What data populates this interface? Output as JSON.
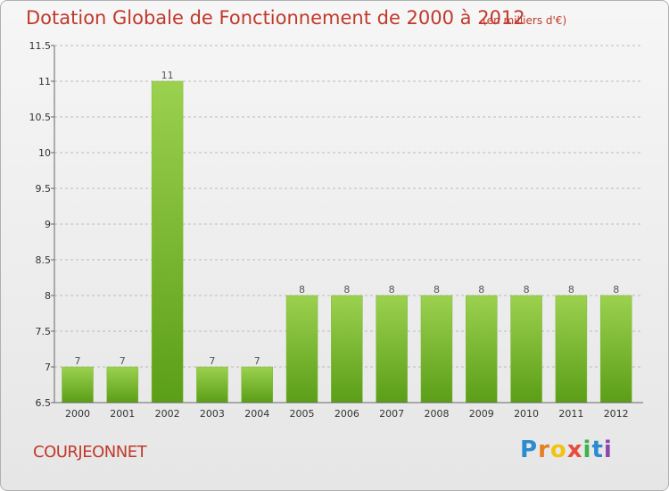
{
  "title": "Dotation Globale de Fonctionnement de 2000 à 2012",
  "subtitle": "(en milliers d'€)",
  "place": "COURJEONNET",
  "logo": {
    "P": "P",
    "r": "r",
    "o": "o",
    "x": "x",
    "i1": "i",
    "t": "t",
    "i2": "i"
  },
  "colors": {
    "title": "#c0392b",
    "bar_top": "#9bd14f",
    "bar_bottom": "#5b9e17",
    "bar_edge": "#7fb83a",
    "grid": "#bbbbbb",
    "axis": "#666666"
  },
  "chart_data": {
    "type": "bar",
    "title": "Dotation Globale de Fonctionnement de 2000 à 2012",
    "subtitle": "(en milliers d'€)",
    "categories": [
      "2000",
      "2001",
      "2002",
      "2003",
      "2004",
      "2005",
      "2006",
      "2007",
      "2008",
      "2009",
      "2010",
      "2011",
      "2012"
    ],
    "values": [
      7,
      7,
      11,
      7,
      7,
      8,
      8,
      8,
      8,
      8,
      8,
      8,
      8
    ],
    "value_labels": [
      "7",
      "7",
      "11",
      "7",
      "7",
      "8",
      "8",
      "8",
      "8",
      "8",
      "8",
      "8",
      "8"
    ],
    "ylim": [
      6.5,
      11.5
    ],
    "yticks": [
      6.5,
      7,
      7.5,
      8,
      8.5,
      9,
      9.5,
      10,
      10.5,
      11,
      11.5
    ],
    "ytick_labels": [
      "6.5",
      "7",
      "7.5",
      "8",
      "8.5",
      "9",
      "9.5",
      "10",
      "10.5",
      "11",
      "11.5"
    ],
    "grid": "horizontal dashed",
    "xlabel": "",
    "ylabel": ""
  }
}
